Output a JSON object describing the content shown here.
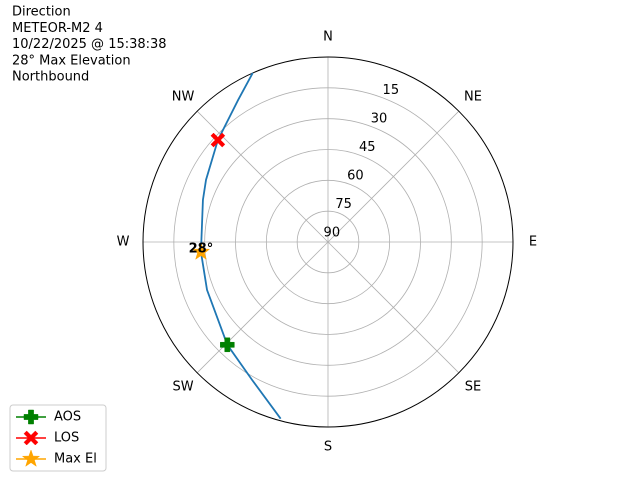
{
  "chart_data": {
    "type": "polar",
    "title_lines": [
      "Direction",
      "METEOR-M2 4",
      "10/22/2025 @ 15:38:38",
      "28° Max Elevation",
      "Northbound"
    ],
    "rlim": [
      90,
      0
    ],
    "rticks": [
      15,
      30,
      45,
      60,
      75,
      90
    ],
    "theta_ticks": [
      {
        "value": 0,
        "label": "N"
      },
      {
        "value": 45,
        "label": "NE"
      },
      {
        "value": 90,
        "label": "E"
      },
      {
        "value": 135,
        "label": "SE"
      },
      {
        "value": 180,
        "label": "S"
      },
      {
        "value": 225,
        "label": "SW"
      },
      {
        "value": 270,
        "label": "W"
      },
      {
        "value": 315,
        "label": "NW"
      }
    ],
    "grid": true,
    "track": {
      "color": "#1f77b4",
      "azimuth": [
        195,
        208.8,
        224.4,
        248.4,
        265.5,
        288.6,
        297,
        312.8,
        327.6,
        336
      ],
      "elevation": [
        1,
        13.4,
        20,
        26.7,
        28,
        25.8,
        23.4,
        17,
        8.3,
        0
      ]
    },
    "series": [
      {
        "name": "AOS",
        "color": "#008000",
        "marker": "plus",
        "azimuth": [
          224.4
        ],
        "elevation": [
          20
        ]
      },
      {
        "name": "LOS",
        "color": "#ff0000",
        "marker": "x",
        "azimuth": [
          312.8
        ],
        "elevation": [
          17
        ]
      },
      {
        "name": "Max El",
        "color": "#ffa500",
        "marker": "star",
        "azimuth": [
          265.5
        ],
        "elevation": [
          28
        ],
        "value_labels": [
          "28°"
        ]
      }
    ],
    "legend": "lower left"
  }
}
